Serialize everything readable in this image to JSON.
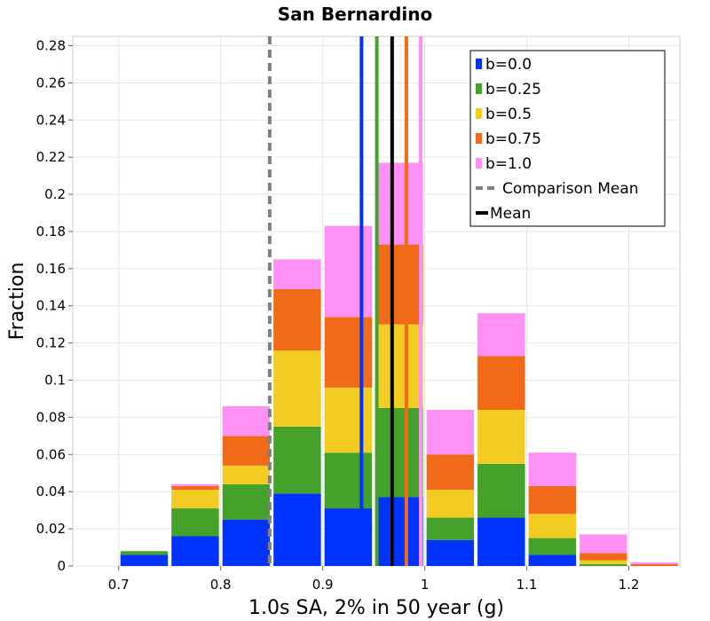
{
  "chart_data": {
    "type": "bar",
    "title": "San Bernardino",
    "xlabel": "1.0s SA, 2% in 50 year (g)",
    "ylabel": "Fraction",
    "xlim": [
      0.655,
      1.25
    ],
    "ylim": [
      0,
      0.285
    ],
    "xticks": [
      "0.7",
      "0.8",
      "0.9",
      "1",
      "1.1",
      "1.2"
    ],
    "xtick_values": [
      0.7,
      0.8,
      0.9,
      1.0,
      1.1,
      1.2
    ],
    "yticks": [
      "0",
      "0.02",
      "0.04",
      "0.06",
      "0.08",
      "0.1",
      "0.12",
      "0.14",
      "0.16",
      "0.18",
      "0.2",
      "0.22",
      "0.24",
      "0.26",
      "0.28"
    ],
    "ytick_values": [
      0,
      0.02,
      0.04,
      0.06,
      0.08,
      0.1,
      0.12,
      0.14,
      0.16,
      0.18,
      0.2,
      0.22,
      0.24,
      0.26,
      0.28
    ],
    "stacked": true,
    "grid": true,
    "legend_position": "top-right",
    "bin_width": 0.05,
    "bin_centers": [
      0.725,
      0.775,
      0.825,
      0.875,
      0.925,
      0.975,
      1.025,
      1.075,
      1.125,
      1.175,
      1.225
    ],
    "series": [
      {
        "name": "b=0.0",
        "color": "#0033ff",
        "values": [
          0.006,
          0.016,
          0.025,
          0.039,
          0.031,
          0.037,
          0.014,
          0.026,
          0.006,
          0.0,
          0.0
        ]
      },
      {
        "name": "b=0.25",
        "color": "#44a12a",
        "values": [
          0.002,
          0.015,
          0.019,
          0.036,
          0.03,
          0.048,
          0.012,
          0.029,
          0.009,
          0.001,
          0.0
        ]
      },
      {
        "name": "b=0.5",
        "color": "#f2cc22",
        "values": [
          0.0,
          0.01,
          0.01,
          0.041,
          0.035,
          0.045,
          0.015,
          0.029,
          0.013,
          0.002,
          0.0
        ]
      },
      {
        "name": "b=0.75",
        "color": "#f06a17",
        "values": [
          0.0,
          0.002,
          0.016,
          0.033,
          0.038,
          0.043,
          0.019,
          0.029,
          0.015,
          0.004,
          0.001
        ]
      },
      {
        "name": "b=1.0",
        "color": "#ff91f5",
        "values": [
          0.0,
          0.001,
          0.016,
          0.016,
          0.049,
          0.044,
          0.024,
          0.023,
          0.018,
          0.01,
          0.001
        ]
      }
    ],
    "mean_lines": [
      {
        "name": "b=0.0",
        "x": 0.938,
        "color": "#0033ff"
      },
      {
        "name": "b=0.25",
        "x": 0.953,
        "color": "#44a12a"
      },
      {
        "name": "b=0.5",
        "x": 0.968,
        "color": "#f2cc22"
      },
      {
        "name": "b=0.75",
        "x": 0.982,
        "color": "#f06a17"
      },
      {
        "name": "b=1.0",
        "x": 0.996,
        "color": "#ff91f5"
      }
    ],
    "comparison_mean": {
      "name": "Comparison Mean",
      "x": 0.848,
      "color": "#808080"
    },
    "mean": {
      "name": "Mean",
      "x": 0.968,
      "color": "#000000"
    }
  }
}
